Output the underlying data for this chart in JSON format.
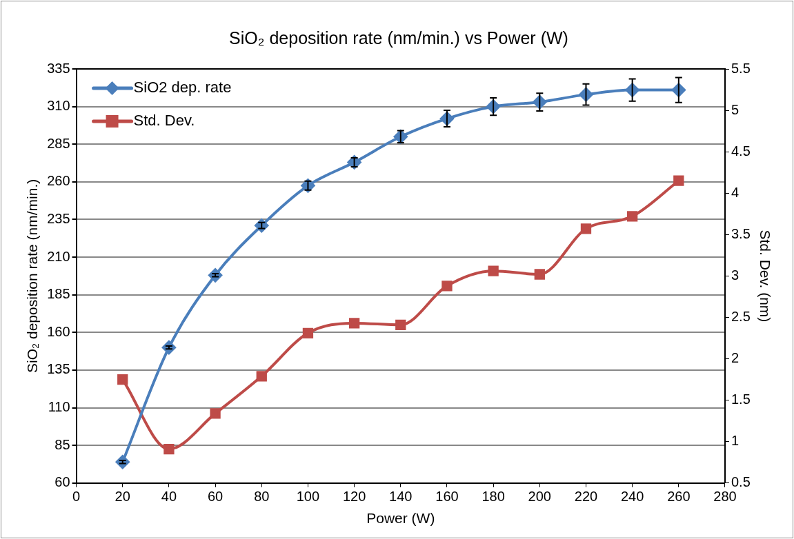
{
  "chart_data": {
    "type": "line",
    "title": "SiO₂ deposition rate (nm/min.) vs Power (W)",
    "xlabel": "Power (W)",
    "ylabel": "SiO₂ deposition rate (nm/min.)",
    "y2label": "Std. Dev. (nm)",
    "x": [
      20,
      40,
      60,
      80,
      100,
      120,
      140,
      160,
      180,
      200,
      220,
      240,
      260
    ],
    "series": [
      {
        "name": "SiO2 dep. rate",
        "color": "#4a7ebb",
        "marker": "diamond",
        "values": [
          74,
          150,
          198,
          231,
          257.5,
          273,
          290,
          302,
          310,
          313,
          318,
          321,
          321
        ],
        "errors": [
          1,
          1,
          1,
          2,
          3,
          3,
          4,
          5.5,
          5.8,
          5.9,
          7,
          7.4,
          8.3
        ]
      },
      {
        "name": "Std. Dev.",
        "color": "#be4b48",
        "marker": "square",
        "axis": "y2",
        "values": [
          1.75,
          0.91,
          1.34,
          1.79,
          2.31,
          2.43,
          2.41,
          2.88,
          3.06,
          3.02,
          3.57,
          3.72,
          4.15
        ]
      }
    ],
    "xlim": [
      0,
      280
    ],
    "xticks": [
      0,
      20,
      40,
      60,
      80,
      100,
      120,
      140,
      160,
      180,
      200,
      220,
      240,
      260,
      280
    ],
    "ylim": [
      60,
      335
    ],
    "yticks": [
      60,
      85,
      110,
      135,
      160,
      185,
      210,
      235,
      260,
      285,
      310,
      335
    ],
    "y2lim": [
      0.5,
      5.5
    ],
    "y2ticks": [
      0.5,
      1,
      1.5,
      2,
      2.5,
      3,
      3.5,
      4,
      4.5,
      5,
      5.5
    ],
    "grid": "y",
    "legend": "top left",
    "line_style": "solid"
  }
}
